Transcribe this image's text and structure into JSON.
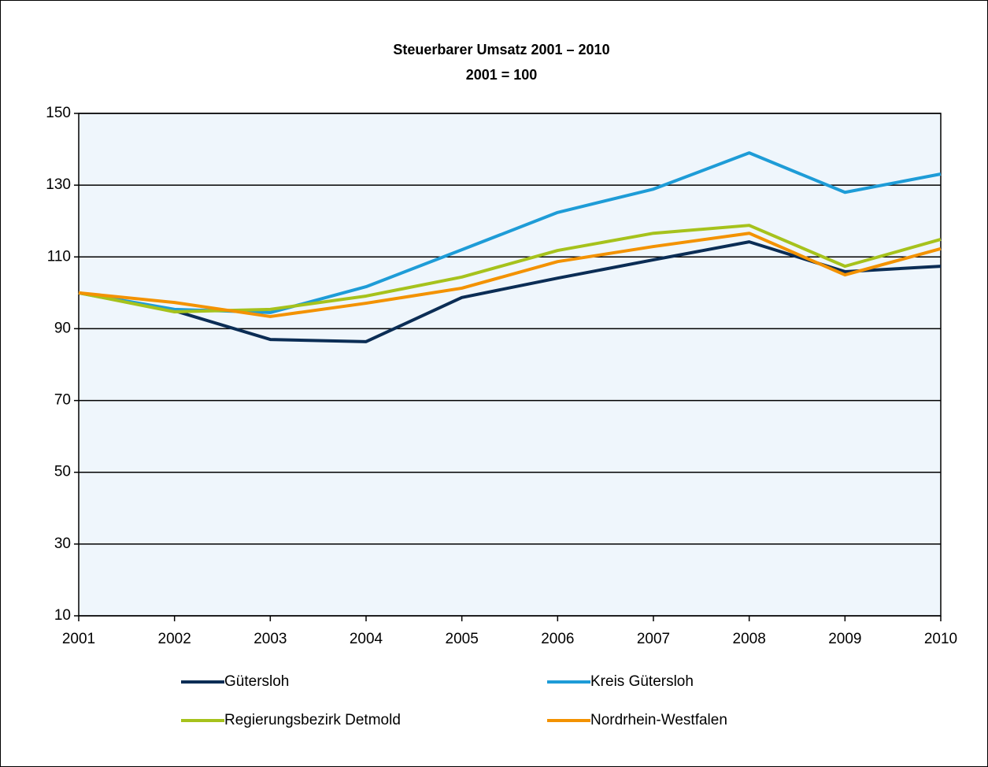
{
  "chart_data": {
    "type": "line",
    "title": "Steuerbarer Umsatz 2001 – 2010",
    "subtitle": "2001 = 100",
    "categories": [
      "2001",
      "2002",
      "2003",
      "2004",
      "2005",
      "2006",
      "2007",
      "2008",
      "2009",
      "2010"
    ],
    "series": [
      {
        "name": "Gütersloh",
        "color": "#0b2d55",
        "values": [
          100,
          95,
          87,
          86.4,
          98.7,
          104.1,
          109.2,
          114.2,
          105.9,
          107.4
        ]
      },
      {
        "name": "Kreis Gütersloh",
        "color": "#1e9cd7",
        "values": [
          100,
          95.4,
          94.5,
          101.7,
          112,
          122.4,
          128.9,
          139,
          128,
          133.1
        ]
      },
      {
        "name": "Regierungsbezirk Detmold",
        "color": "#a6c21c",
        "values": [
          100,
          94.7,
          95.4,
          99.1,
          104.4,
          111.8,
          116.6,
          118.8,
          107.4,
          114.9
        ]
      },
      {
        "name": "Nordrhein-Westfalen",
        "color": "#f39200",
        "values": [
          100,
          97.3,
          93.4,
          97.1,
          101.3,
          108.7,
          112.9,
          116.6,
          105,
          112.3
        ]
      }
    ],
    "ylim": [
      10,
      150
    ],
    "yticks": [
      10,
      30,
      50,
      70,
      90,
      110,
      130,
      150
    ],
    "grid": true
  }
}
